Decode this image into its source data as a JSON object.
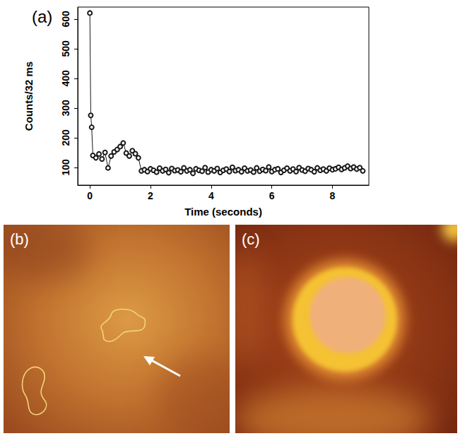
{
  "chart_data": {
    "type": "line",
    "title": "(a)",
    "xlabel": "Time (seconds)",
    "ylabel": "Counts/32 ms",
    "x": [
      0,
      0.03,
      0.06,
      0.1,
      0.2,
      0.3,
      0.4,
      0.5,
      0.6,
      0.7,
      0.8,
      0.9,
      1.0,
      1.1,
      1.2,
      1.3,
      1.4,
      1.5,
      1.6,
      1.7,
      1.8,
      1.9,
      2.0,
      2.1,
      2.2,
      2.3,
      2.4,
      2.5,
      2.6,
      2.7,
      2.8,
      2.9,
      3.0,
      3.1,
      3.2,
      3.3,
      3.4,
      3.5,
      3.6,
      3.7,
      3.8,
      3.9,
      4.0,
      4.1,
      4.2,
      4.3,
      4.4,
      4.5,
      4.6,
      4.7,
      4.8,
      4.9,
      5.0,
      5.1,
      5.2,
      5.3,
      5.4,
      5.5,
      5.6,
      5.7,
      5.8,
      5.9,
      6.0,
      6.1,
      6.2,
      6.3,
      6.4,
      6.5,
      6.6,
      6.7,
      6.8,
      6.9,
      7.0,
      7.1,
      7.2,
      7.3,
      7.4,
      7.5,
      7.6,
      7.7,
      7.8,
      7.9,
      8.0,
      8.1,
      8.2,
      8.3,
      8.4,
      8.5,
      8.6,
      8.7,
      8.8,
      8.9,
      9.0
    ],
    "values": [
      620,
      275,
      235,
      140,
      132,
      145,
      128,
      150,
      98,
      138,
      152,
      160,
      170,
      182,
      148,
      138,
      156,
      146,
      132,
      88,
      92,
      86,
      95,
      90,
      84,
      97,
      88,
      93,
      82,
      96,
      89,
      91,
      85,
      98,
      88,
      92,
      80,
      95,
      90,
      87,
      99,
      84,
      92,
      88,
      96,
      83,
      90,
      94,
      86,
      100,
      89,
      92,
      85,
      97,
      88,
      91,
      84,
      98,
      87,
      93,
      89,
      101,
      86,
      92,
      95,
      83,
      90,
      97,
      88,
      94,
      86,
      99,
      91,
      87,
      96,
      92,
      85,
      98,
      90,
      94,
      88,
      97,
      92,
      95,
      100,
      93,
      98,
      104,
      96,
      101,
      94,
      99,
      88
    ],
    "xlim": [
      -0.4,
      9.2
    ],
    "xticks": [
      0,
      2,
      4,
      6,
      8
    ],
    "ylim": [
      40,
      640
    ],
    "yticks": [
      100,
      200,
      300,
      400,
      500,
      600
    ],
    "color": "#1a1a1a",
    "marker": "circle",
    "grid": false
  },
  "images": [
    {
      "label": "(b)"
    },
    {
      "label": "(c)"
    }
  ]
}
